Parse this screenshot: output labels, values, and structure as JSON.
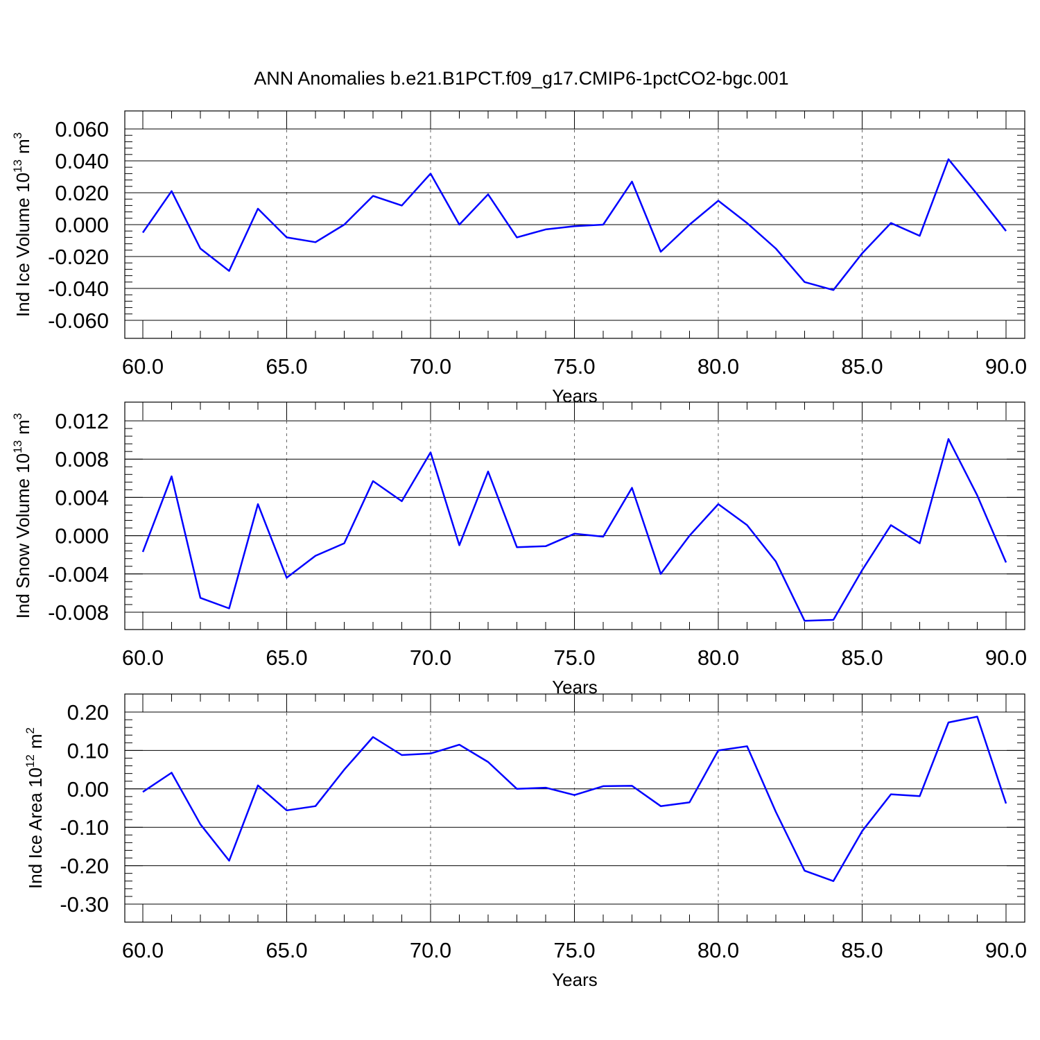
{
  "title": "ANN Anomalies b.e21.B1PCT.f09_g17.CMIP6-1pctCO2-bgc.001",
  "chart_data": [
    {
      "type": "line",
      "xlabel": "Years",
      "ylabel_main": "Ind Ice Volume 10",
      "ylabel_exp": "13",
      "ylabel_unit": "m",
      "ylabel_unit_exp": "3",
      "xlim": [
        60,
        90
      ],
      "ylim": [
        -0.06,
        0.06
      ],
      "x_ticks": [
        60,
        65,
        70,
        75,
        80,
        85,
        90
      ],
      "x_tick_labels": [
        "60.0",
        "65.0",
        "70.0",
        "75.0",
        "80.0",
        "85.0",
        "90.0"
      ],
      "y_ticks": [
        -0.06,
        -0.04,
        -0.02,
        0.0,
        0.02,
        0.04,
        0.06
      ],
      "y_tick_labels": [
        "-0.060",
        "-0.040",
        "-0.020",
        "0.000",
        "0.020",
        "0.040",
        "0.060"
      ],
      "x": [
        60,
        61,
        62,
        63,
        64,
        65,
        66,
        67,
        68,
        69,
        70,
        71,
        72,
        73,
        74,
        75,
        76,
        77,
        78,
        79,
        80,
        81,
        82,
        83,
        84,
        85,
        86,
        87,
        88,
        89,
        90
      ],
      "values": [
        -0.005,
        0.021,
        -0.015,
        -0.029,
        0.01,
        -0.008,
        -0.011,
        0.0,
        0.018,
        0.012,
        0.032,
        0.0,
        0.019,
        -0.008,
        -0.003,
        -0.001,
        0.0,
        0.027,
        -0.017,
        0.0,
        0.015,
        0.001,
        -0.015,
        -0.036,
        -0.041,
        -0.018,
        0.001,
        -0.007,
        0.041,
        0.019,
        -0.004
      ],
      "grid": "vertical dashed at major x ticks",
      "color": "#0000ff"
    },
    {
      "type": "line",
      "xlabel": "Years",
      "ylabel_main": "Ind Snow Volume 10",
      "ylabel_exp": "13",
      "ylabel_unit": "m",
      "ylabel_unit_exp": "3",
      "xlim": [
        60,
        90
      ],
      "ylim": [
        -0.009,
        0.012
      ],
      "x_ticks": [
        60,
        65,
        70,
        75,
        80,
        85,
        90
      ],
      "x_tick_labels": [
        "60.0",
        "65.0",
        "70.0",
        "75.0",
        "80.0",
        "85.0",
        "90.0"
      ],
      "y_ticks": [
        -0.008,
        -0.004,
        0.0,
        0.004,
        0.008,
        0.012
      ],
      "y_tick_labels": [
        "-0.008",
        "-0.004",
        "0.000",
        "0.004",
        "0.008",
        "0.012"
      ],
      "x": [
        60,
        61,
        62,
        63,
        64,
        65,
        66,
        67,
        68,
        69,
        70,
        71,
        72,
        73,
        74,
        75,
        76,
        77,
        78,
        79,
        80,
        81,
        82,
        83,
        84,
        85,
        86,
        87,
        88,
        89,
        90
      ],
      "values": [
        -0.0017,
        0.0062,
        -0.0065,
        -0.0076,
        0.0033,
        -0.0044,
        -0.0021,
        -0.0008,
        0.0057,
        0.0036,
        0.0087,
        -0.001,
        0.0067,
        -0.0012,
        -0.0011,
        0.0002,
        -0.0001,
        0.005,
        -0.004,
        0.0,
        0.0033,
        0.0011,
        -0.0027,
        -0.0089,
        -0.0088,
        -0.0036,
        0.0011,
        -0.0008,
        0.0101,
        0.0042,
        -0.0028
      ],
      "grid": "vertical dashed at major x ticks",
      "color": "#0000ff"
    },
    {
      "type": "line",
      "xlabel": "Years",
      "ylabel_main": "Ind Ice Area 10",
      "ylabel_exp": "12",
      "ylabel_unit": "m",
      "ylabel_unit_exp": "2",
      "xlim": [
        60,
        90
      ],
      "ylim": [
        -0.3,
        0.2
      ],
      "x_ticks": [
        60,
        65,
        70,
        75,
        80,
        85,
        90
      ],
      "x_tick_labels": [
        "60.0",
        "65.0",
        "70.0",
        "75.0",
        "80.0",
        "85.0",
        "90.0"
      ],
      "y_ticks": [
        -0.3,
        -0.2,
        -0.1,
        0.0,
        0.1,
        0.2
      ],
      "y_tick_labels": [
        "-0.30",
        "-0.20",
        "-0.10",
        "0.00",
        "0.10",
        "0.20"
      ],
      "x": [
        60,
        61,
        62,
        63,
        64,
        65,
        66,
        67,
        68,
        69,
        70,
        71,
        72,
        73,
        74,
        75,
        76,
        77,
        78,
        79,
        80,
        81,
        82,
        83,
        84,
        85,
        86,
        87,
        88,
        89,
        90
      ],
      "values": [
        -0.008,
        0.042,
        -0.092,
        -0.187,
        0.009,
        -0.056,
        -0.045,
        0.05,
        0.135,
        0.088,
        0.092,
        0.115,
        0.07,
        0.0,
        0.003,
        -0.016,
        0.007,
        0.008,
        -0.045,
        -0.035,
        0.1,
        0.111,
        -0.06,
        -0.213,
        -0.24,
        -0.11,
        -0.014,
        -0.019,
        0.173,
        0.188,
        -0.038
      ],
      "grid": "vertical dashed at major x ticks",
      "color": "#0000ff"
    }
  ]
}
